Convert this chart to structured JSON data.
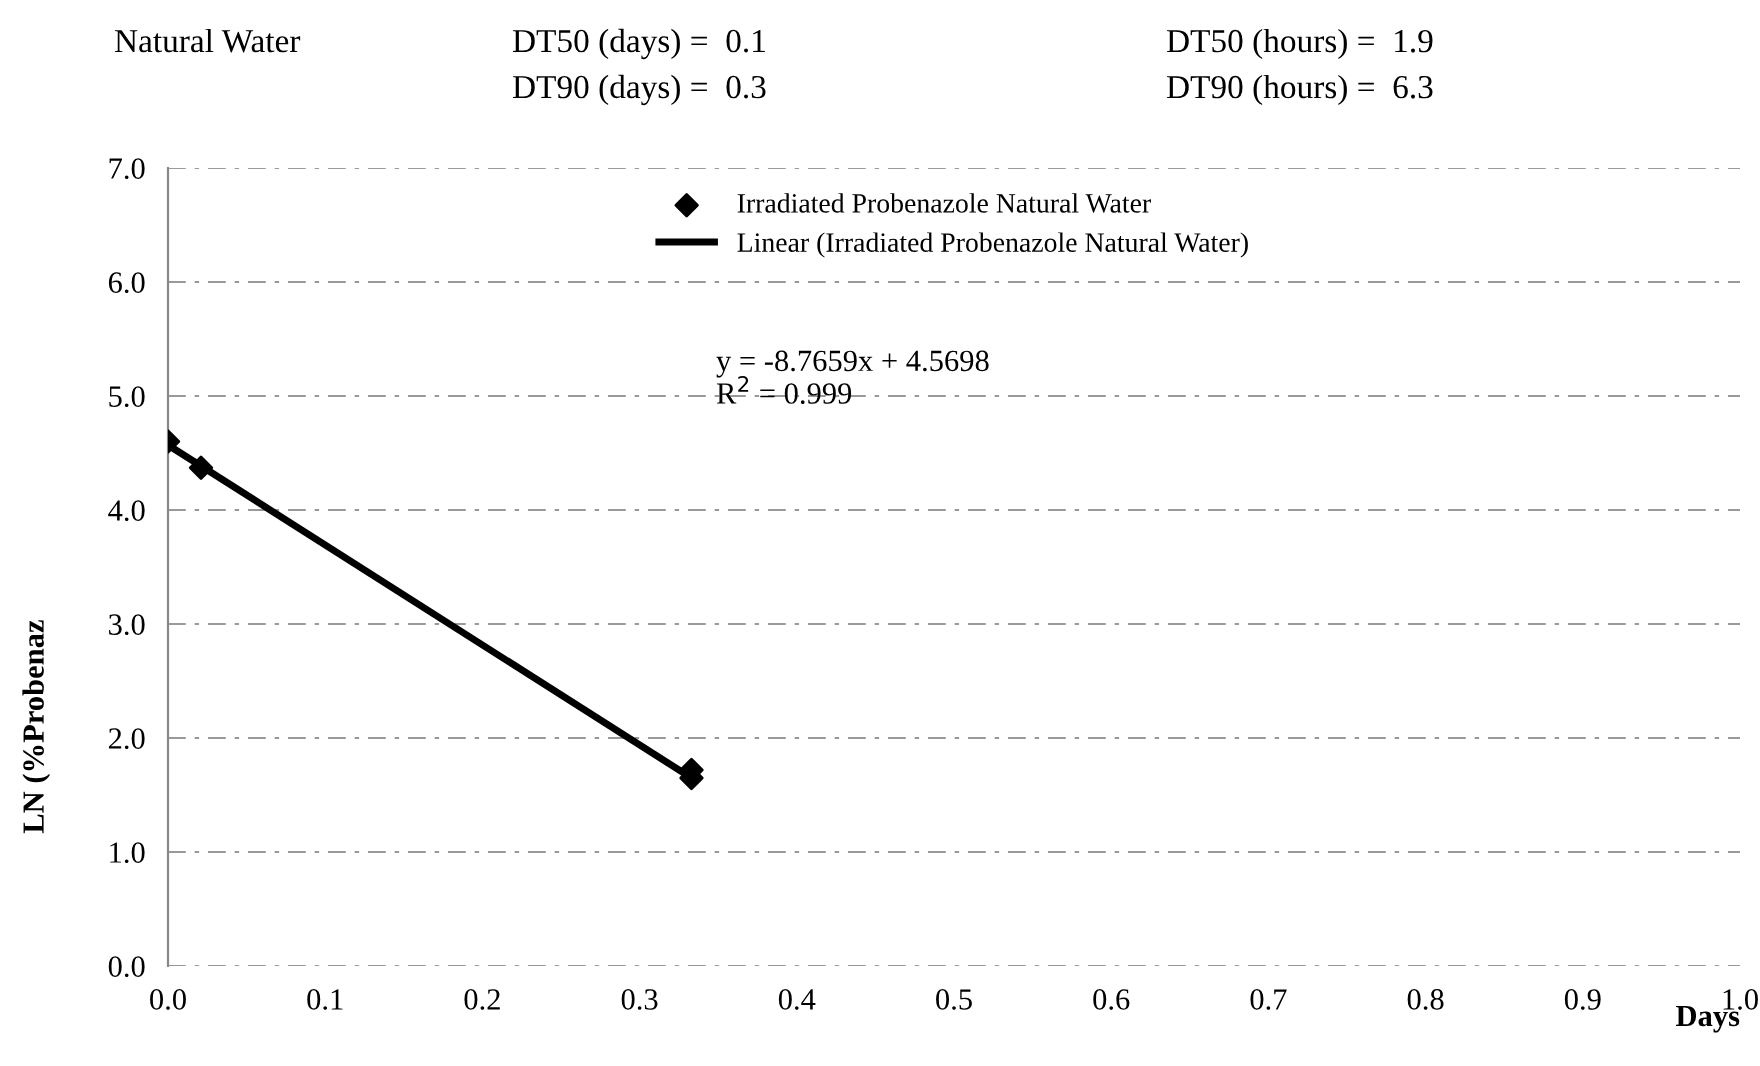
{
  "chart_data": {
    "type": "scatter",
    "title": "Natural Water",
    "annotations": [
      "DT50 (days) =  0.1",
      "DT90 (days) =  0.3",
      "DT50 (hours) =  1.9",
      "DT90 (hours) =  6.3",
      "y = -8.7659x + 4.5698\nR$^{2}$ = 0.999"
    ],
    "xlabel": "Days",
    "ylabel": "LN (%Probenaz",
    "series": [
      {
        "name": "Irradiated Probenazole Natural Water",
        "color": "#000000",
        "marker": "diamond",
        "x": [
          0.0,
          0.021,
          0.333,
          0.333
        ],
        "values": [
          4.6,
          4.37,
          1.72,
          1.65
        ]
      },
      {
        "name": "Linear (Irradiated Probenazole Natural Water)",
        "type": "line",
        "color": "#000000",
        "line_style": "solid",
        "x": [
          0.0,
          0.333
        ],
        "values": [
          4.57,
          1.65
        ]
      }
    ],
    "xlim": [
      0,
      1.0
    ],
    "xticks": [
      {
        "value": 0,
        "label": "0.0"
      },
      {
        "value": 0.1,
        "label": "0.1"
      },
      {
        "value": 0.2,
        "label": "0.2"
      },
      {
        "value": 0.3,
        "label": "0.3"
      },
      {
        "value": 0.4,
        "label": "0.4"
      },
      {
        "value": 0.5,
        "label": "0.5"
      },
      {
        "value": 0.6,
        "label": "0.6"
      },
      {
        "value": 0.7,
        "label": "0.7"
      },
      {
        "value": 0.8,
        "label": "0.8"
      },
      {
        "value": 0.9,
        "label": "0.9"
      },
      {
        "value": 1.0,
        "label": "1.0"
      }
    ],
    "ylim": [
      0,
      7.0
    ],
    "yticks": [
      {
        "value": 0,
        "label": "0.0"
      },
      {
        "value": 1,
        "label": "1.0"
      },
      {
        "value": 2,
        "label": "2.0"
      },
      {
        "value": 3,
        "label": "3.0"
      },
      {
        "value": 4,
        "label": "4.0"
      },
      {
        "value": 5,
        "label": "5.0"
      },
      {
        "value": 6,
        "label": "6.0"
      },
      {
        "value": 7,
        "label": "7.0"
      }
    ],
    "grid": "y",
    "legend": "top"
  }
}
